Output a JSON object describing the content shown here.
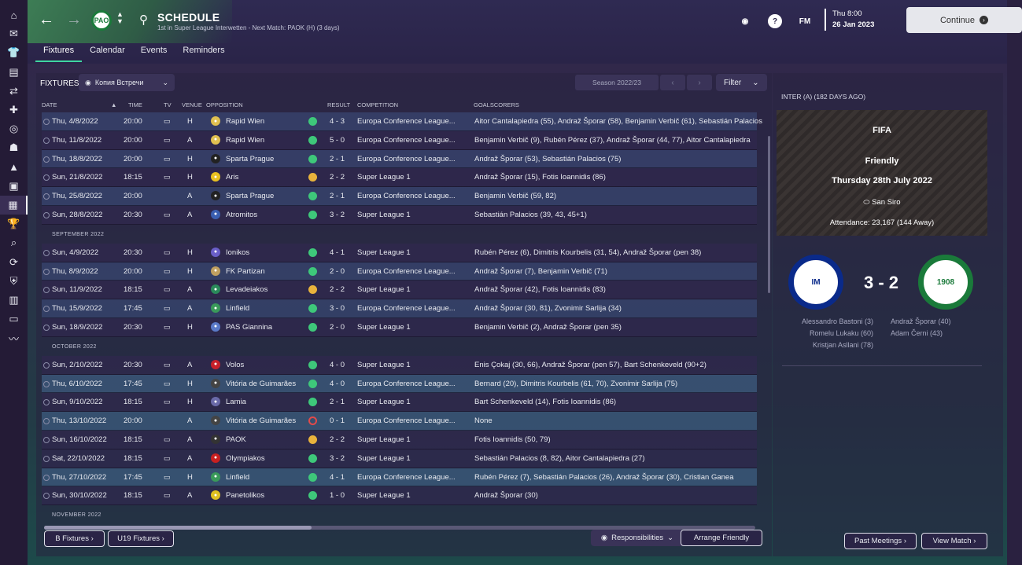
{
  "header": {
    "title": "SCHEDULE",
    "subtitle": "1st in Super League Interwetten - Next Match: PAOK (H) (3 days)",
    "crest_text": "PAO",
    "date_time": "Thu 8:00",
    "date": "26 Jan 2023",
    "continue_label": "Continue",
    "fm_label": "FM",
    "help_label": "?"
  },
  "tabs": [
    "Fixtures",
    "Calendar",
    "Events",
    "Reminders"
  ],
  "toolbar": {
    "fixtures_label": "FIXTURES",
    "view_label": "Копия Встречи",
    "season": "Season 2022/23",
    "filter_label": "Filter"
  },
  "columns": {
    "date": "DATE",
    "time": "TIME",
    "tv": "TV",
    "venue": "VENUE",
    "opposition": "OPPOSITION",
    "result": "RESULT",
    "competition": "COMPETITION",
    "goalscorers": "GOALSCORERS"
  },
  "months": {
    "sep": "SEPTEMBER 2022",
    "oct": "OCTOBER 2022",
    "nov": "NOVEMBER 2022"
  },
  "fixtures": [
    {
      "date": "Thu, 4/8/2022",
      "time": "20:00",
      "venue": "H",
      "opp": "Rapid Wien",
      "result": "4 - 3",
      "comp": "Europa Conference League...",
      "scorers": "Aitor Cantalapiedra (55), Andraž Šporar (58), Benjamin Verbič (61), Sebastián Palacios"
    },
    {
      "date": "Thu, 11/8/2022",
      "time": "20:00",
      "venue": "A",
      "opp": "Rapid Wien",
      "result": "5 - 0",
      "comp": "Europa Conference League...",
      "scorers": "Benjamin Verbič (9), Rubén Pérez (37), Andraž Šporar (44, 77), Aitor Cantalapiedra"
    },
    {
      "date": "Thu, 18/8/2022",
      "time": "20:00",
      "venue": "H",
      "opp": "Sparta Prague",
      "result": "2 - 1",
      "comp": "Europa Conference League...",
      "scorers": "Andraž Šporar (53), Sebastián Palacios (75)"
    },
    {
      "date": "Sun, 21/8/2022",
      "time": "18:15",
      "venue": "H",
      "opp": "Aris",
      "result": "2 - 2",
      "comp": "Super League 1",
      "scorers": "Andraž Šporar (15), Fotis Ioannidis (86)"
    },
    {
      "date": "Thu, 25/8/2022",
      "time": "20:00",
      "venue": "A",
      "opp": "Sparta Prague",
      "result": "2 - 1",
      "comp": "Europa Conference League...",
      "scorers": "Benjamin Verbič (59, 82)"
    },
    {
      "date": "Sun, 28/8/2022",
      "time": "20:30",
      "venue": "A",
      "opp": "Atromitos",
      "result": "3 - 2",
      "comp": "Super League 1",
      "scorers": "Sebastián Palacios (39, 43, 45+1)"
    },
    {
      "date": "Sun, 4/9/2022",
      "time": "20:30",
      "venue": "H",
      "opp": "Ionikos",
      "result": "4 - 1",
      "comp": "Super League 1",
      "scorers": "Rubén Pérez (6), Dimitris Kourbelis (31, 54), Andraž Šporar (pen 38)"
    },
    {
      "date": "Thu, 8/9/2022",
      "time": "20:00",
      "venue": "H",
      "opp": "FK Partizan",
      "result": "2 - 0",
      "comp": "Europa Conference League...",
      "scorers": "Andraž Šporar (7), Benjamin Verbič (71)"
    },
    {
      "date": "Sun, 11/9/2022",
      "time": "18:15",
      "venue": "A",
      "opp": "Levadeiakos",
      "result": "2 - 2",
      "comp": "Super League 1",
      "scorers": "Andraž Šporar (42), Fotis Ioannidis (83)"
    },
    {
      "date": "Thu, 15/9/2022",
      "time": "17:45",
      "venue": "A",
      "opp": "Linfield",
      "result": "3 - 0",
      "comp": "Europa Conference League...",
      "scorers": "Andraž Šporar (30, 81), Zvonimir Sarlija (34)"
    },
    {
      "date": "Sun, 18/9/2022",
      "time": "20:30",
      "venue": "H",
      "opp": "PAS Giannina",
      "result": "2 - 0",
      "comp": "Super League 1",
      "scorers": "Benjamin Verbič (2), Andraž Šporar (pen 35)"
    },
    {
      "date": "Sun, 2/10/2022",
      "time": "20:30",
      "venue": "A",
      "opp": "Volos",
      "result": "4 - 0",
      "comp": "Super League 1",
      "scorers": "Enis Çokaj (30, 66), Andraž Šporar (pen 57), Bart Schenkeveld (90+2)"
    },
    {
      "date": "Thu, 6/10/2022",
      "time": "17:45",
      "venue": "H",
      "opp": "Vitória de Guimarães",
      "result": "4 - 0",
      "comp": "Europa Conference League...",
      "scorers": "Bernard (20), Dimitris Kourbelis (61, 70), Zvonimir Sarlija (75)"
    },
    {
      "date": "Sun, 9/10/2022",
      "time": "18:15",
      "venue": "H",
      "opp": "Lamia",
      "result": "2 - 1",
      "comp": "Super League 1",
      "scorers": "Bart Schenkeveld (14), Fotis Ioannidis (86)"
    },
    {
      "date": "Thu, 13/10/2022",
      "time": "20:00",
      "venue": "A",
      "opp": "Vitória de Guimarães",
      "result": "0 - 1",
      "comp": "Europa Conference League...",
      "scorers": "None"
    },
    {
      "date": "Sun, 16/10/2022",
      "time": "18:15",
      "venue": "A",
      "opp": "PAOK",
      "result": "2 - 2",
      "comp": "Super League 1",
      "scorers": "Fotis Ioannidis (50, 79)"
    },
    {
      "date": "Sat, 22/10/2022",
      "time": "18:15",
      "venue": "A",
      "opp": "Olympiakos",
      "result": "3 - 2",
      "comp": "Super League 1",
      "scorers": "Sebastián Palacios (8, 82), Aitor Cantalapiedra (27)"
    },
    {
      "date": "Thu, 27/10/2022",
      "time": "17:45",
      "venue": "H",
      "opp": "Linfield",
      "result": "4 - 1",
      "comp": "Europa Conference League...",
      "scorers": "Rubén Pérez (7), Sebastián Palacios (26), Andraž Šporar (30), Cristian Ganea"
    },
    {
      "date": "Sun, 30/10/2022",
      "time": "18:15",
      "venue": "A",
      "opp": "Panetolikos",
      "result": "1 - 0",
      "comp": "Super League 1",
      "scorers": "Andraž Šporar (30)"
    }
  ],
  "footer": {
    "b_fixtures": "B Fixtures",
    "u19_fixtures": "U19 Fixtures",
    "responsibilities": "Responsibilities",
    "arrange_friendly": "Arrange Friendly"
  },
  "preview": {
    "title": "INTER (A) (182 DAYS AGO)",
    "org": "FIFA",
    "type": "Friendly",
    "date": "Thursday 28th July 2022",
    "stadium": "San Siro",
    "attendance": "Attendance: 23,167 (144 Away)",
    "home_crest": "IM",
    "away_crest": "1908",
    "score": "3 - 2",
    "home_scorers": [
      "Alessandro Bastoni (3)",
      "Romelu Lukaku (60)",
      "Kristjan Asllani (78)"
    ],
    "away_scorers": [
      "Andraž Šporar (40)",
      "Adam Černi (43)"
    ],
    "past_meetings": "Past Meetings",
    "view_match": "View Match"
  }
}
